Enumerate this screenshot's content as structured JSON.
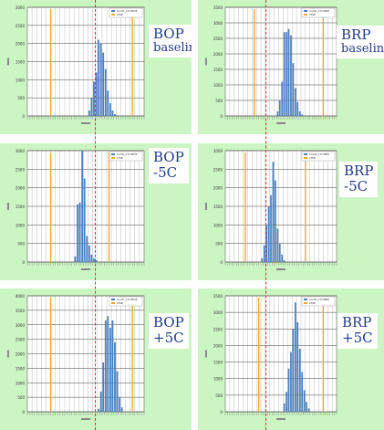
{
  "colors": {
    "panel_bg": "#ccf5c4",
    "bar": "#4a7fc0",
    "limit": "#f0a830",
    "ref_line": "#e0302a",
    "label_text": "#1f3a8a"
  },
  "chart_data": [
    {
      "type": "bar",
      "label": [
        "BOP",
        "baseline"
      ],
      "legend": [
        "CurlD_10=BOP",
        "LTSE"
      ],
      "ylim": [
        0,
        3000
      ],
      "yticks": [
        0,
        500,
        1000,
        1500,
        2000,
        2500,
        3000
      ],
      "n_bins": 50,
      "bins": [
        26,
        27,
        28,
        29,
        30,
        31,
        32,
        33,
        34,
        35,
        36,
        37
      ],
      "values": [
        150,
        500,
        950,
        1200,
        2100,
        2000,
        1750,
        1300,
        700,
        350,
        150,
        50
      ],
      "limits": [
        10,
        45
      ],
      "ref_bin": 29,
      "grid": true
    },
    {
      "type": "bar",
      "label": [
        "BRP",
        "baseline"
      ],
      "legend": [
        "CurlD_10=BRP",
        "LTSE"
      ],
      "ylim": [
        0,
        3500
      ],
      "yticks": [
        0,
        500,
        1000,
        1500,
        2000,
        2500,
        3000,
        3500
      ],
      "n_bins": 50,
      "bins": [
        23,
        24,
        25,
        26,
        27,
        28,
        29,
        30,
        31,
        32,
        33,
        34
      ],
      "values": [
        150,
        500,
        1100,
        2700,
        2700,
        2800,
        2600,
        1700,
        900,
        450,
        150,
        50
      ],
      "limits": [
        13,
        44
      ],
      "ref_bin": 27,
      "grid": true
    },
    {
      "type": "bar",
      "label": [
        "BOP",
        "-5C"
      ],
      "legend": [
        "CurlD_10=BOP",
        "LTSE"
      ],
      "ylim": [
        0,
        3000
      ],
      "yticks": [
        0,
        500,
        1000,
        1500,
        2000,
        2500,
        3000
      ],
      "n_bins": 50,
      "bins": [
        20,
        21,
        22,
        23,
        24,
        25,
        26,
        27,
        28,
        29
      ],
      "values": [
        150,
        1550,
        1600,
        3000,
        2250,
        700,
        450,
        200,
        100,
        50
      ],
      "limits": [
        10,
        35
      ],
      "ref_bin": 26,
      "grid": true
    },
    {
      "type": "bar",
      "label": [
        "BRP",
        "-5C"
      ],
      "legend": [
        "CurlD_10=BRP",
        "LTSE"
      ],
      "ylim": [
        0,
        3000
      ],
      "yticks": [
        0,
        500,
        1000,
        1500,
        2000,
        2500,
        3000
      ],
      "n_bins": 50,
      "bins": [
        16,
        17,
        18,
        19,
        20,
        21,
        22,
        23,
        24,
        25,
        26
      ],
      "values": [
        100,
        450,
        1000,
        1500,
        1800,
        2700,
        2200,
        900,
        500,
        200,
        50
      ],
      "limits": [
        9,
        36
      ],
      "ref_bin": 25,
      "grid": true
    },
    {
      "type": "bar",
      "label": [
        "BOP",
        "+5C"
      ],
      "legend": [
        "CurlD_10=BOP",
        "LTSE"
      ],
      "ylim": [
        0,
        4000
      ],
      "yticks": [
        0,
        500,
        1000,
        1500,
        2000,
        2500,
        3000,
        3500,
        4000
      ],
      "n_bins": 50,
      "bins": [
        30,
        31,
        32,
        33,
        34,
        35,
        36,
        37,
        38,
        39,
        40
      ],
      "values": [
        100,
        700,
        1700,
        3150,
        3300,
        2900,
        3150,
        2400,
        1400,
        500,
        150
      ],
      "limits": [
        10,
        45
      ],
      "ref_bin": 27,
      "grid": true
    },
    {
      "type": "bar",
      "label": [
        "BRP",
        "+5C"
      ],
      "legend": [
        "CurlD_10=BRP",
        "LTSE"
      ],
      "ylim": [
        0,
        3500
      ],
      "yticks": [
        0,
        500,
        1000,
        1500,
        2000,
        2500,
        3000,
        3500
      ],
      "n_bins": 50,
      "bins": [
        26,
        27,
        28,
        29,
        30,
        31,
        32,
        33,
        34,
        35,
        36,
        37
      ],
      "values": [
        250,
        600,
        1300,
        1800,
        2500,
        3300,
        2700,
        1900,
        1200,
        650,
        300,
        100
      ],
      "limits": [
        15,
        44
      ],
      "ref_bin": 20,
      "grid": true
    }
  ]
}
